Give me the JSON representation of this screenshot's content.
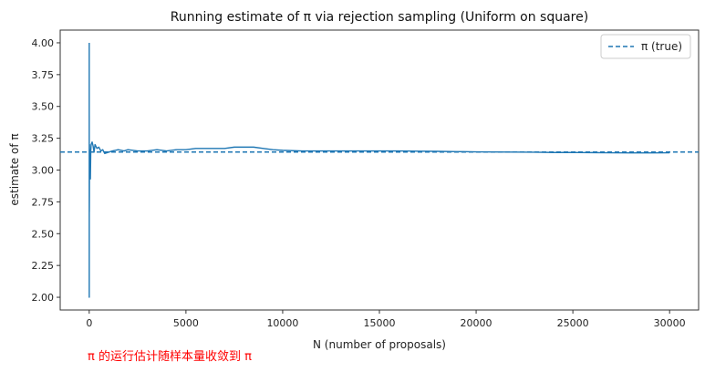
{
  "chart_data": {
    "type": "line",
    "title": "Running estimate of π via rejection sampling (Uniform on square)",
    "xlabel": "N (number of proposals)",
    "ylabel": "estimate of π",
    "xlim": [
      -1500,
      31500
    ],
    "ylim": [
      1.9,
      4.1
    ],
    "xticks": [
      0,
      5000,
      10000,
      15000,
      20000,
      25000,
      30000
    ],
    "yticks": [
      2.0,
      2.25,
      2.5,
      2.75,
      3.0,
      3.25,
      3.5,
      3.75,
      4.0
    ],
    "xtick_labels": [
      "0",
      "5000",
      "10000",
      "15000",
      "20000",
      "25000",
      "30000"
    ],
    "ytick_labels": [
      "2.00",
      "2.25",
      "2.50",
      "2.75",
      "3.00",
      "3.25",
      "3.50",
      "3.75",
      "4.00"
    ],
    "grid": false,
    "legend_position": "top-right",
    "line_color": "#1f77b4",
    "series": [
      {
        "name": "running estimate",
        "style": "solid",
        "x": [
          1,
          2,
          4,
          6,
          10,
          15,
          20,
          30,
          40,
          60,
          80,
          100,
          150,
          200,
          250,
          300,
          400,
          500,
          600,
          700,
          800,
          1000,
          1200,
          1500,
          1800,
          2000,
          2500,
          3000,
          3500,
          4000,
          4500,
          5000,
          5500,
          6000,
          6500,
          7000,
          7500,
          8000,
          8500,
          9000,
          9500,
          10000,
          11000,
          12000,
          13000,
          14000,
          15000,
          16000,
          17000,
          18000,
          19000,
          20000,
          21000,
          22000,
          23000,
          24000,
          25000,
          26000,
          27000,
          28000,
          29000,
          30000
        ],
        "values": [
          4.0,
          2.0,
          3.0,
          2.67,
          2.8,
          3.2,
          3.0,
          3.07,
          3.1,
          2.93,
          3.15,
          3.2,
          3.22,
          3.19,
          3.14,
          3.2,
          3.17,
          3.18,
          3.15,
          3.16,
          3.13,
          3.14,
          3.15,
          3.16,
          3.15,
          3.16,
          3.15,
          3.15,
          3.16,
          3.15,
          3.16,
          3.16,
          3.17,
          3.17,
          3.17,
          3.17,
          3.18,
          3.18,
          3.18,
          3.17,
          3.16,
          3.155,
          3.15,
          3.15,
          3.15,
          3.15,
          3.15,
          3.15,
          3.148,
          3.147,
          3.145,
          3.143,
          3.142,
          3.141,
          3.14,
          3.138,
          3.138,
          3.137,
          3.136,
          3.135,
          3.135,
          3.136
        ]
      },
      {
        "name": "π (true)",
        "style": "dashed",
        "value": 3.14159
      }
    ],
    "annotation": "π 的运行估计随样本量收敛到 π"
  }
}
